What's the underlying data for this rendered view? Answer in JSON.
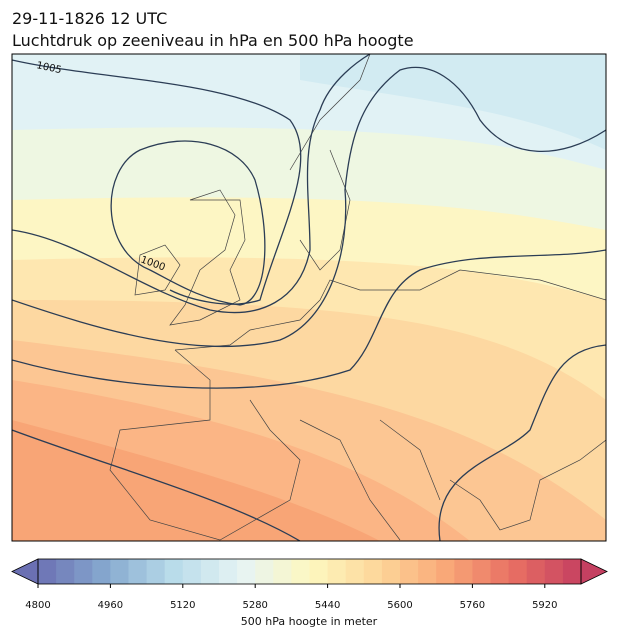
{
  "header": {
    "date": "29-11-1826 12 UTC",
    "title": "Luchtdruk op zeeniveau in hPa en 500 hPa hoogte"
  },
  "map": {
    "contour_labels": [
      "1005",
      "1000"
    ]
  },
  "colorbar": {
    "label": "500 hPa hoogte in meter",
    "range": [
      4800,
      6000
    ],
    "step": 40,
    "ticks": [
      4800,
      4960,
      5120,
      5280,
      5440,
      5600,
      5760,
      5920
    ],
    "colors": [
      "#6b70b3",
      "#86a9cf",
      "#b9dcea",
      "#e6f4f4",
      "#fdf8c0",
      "#fdd79a",
      "#f9a878",
      "#e86f63",
      "#c54061"
    ]
  }
}
